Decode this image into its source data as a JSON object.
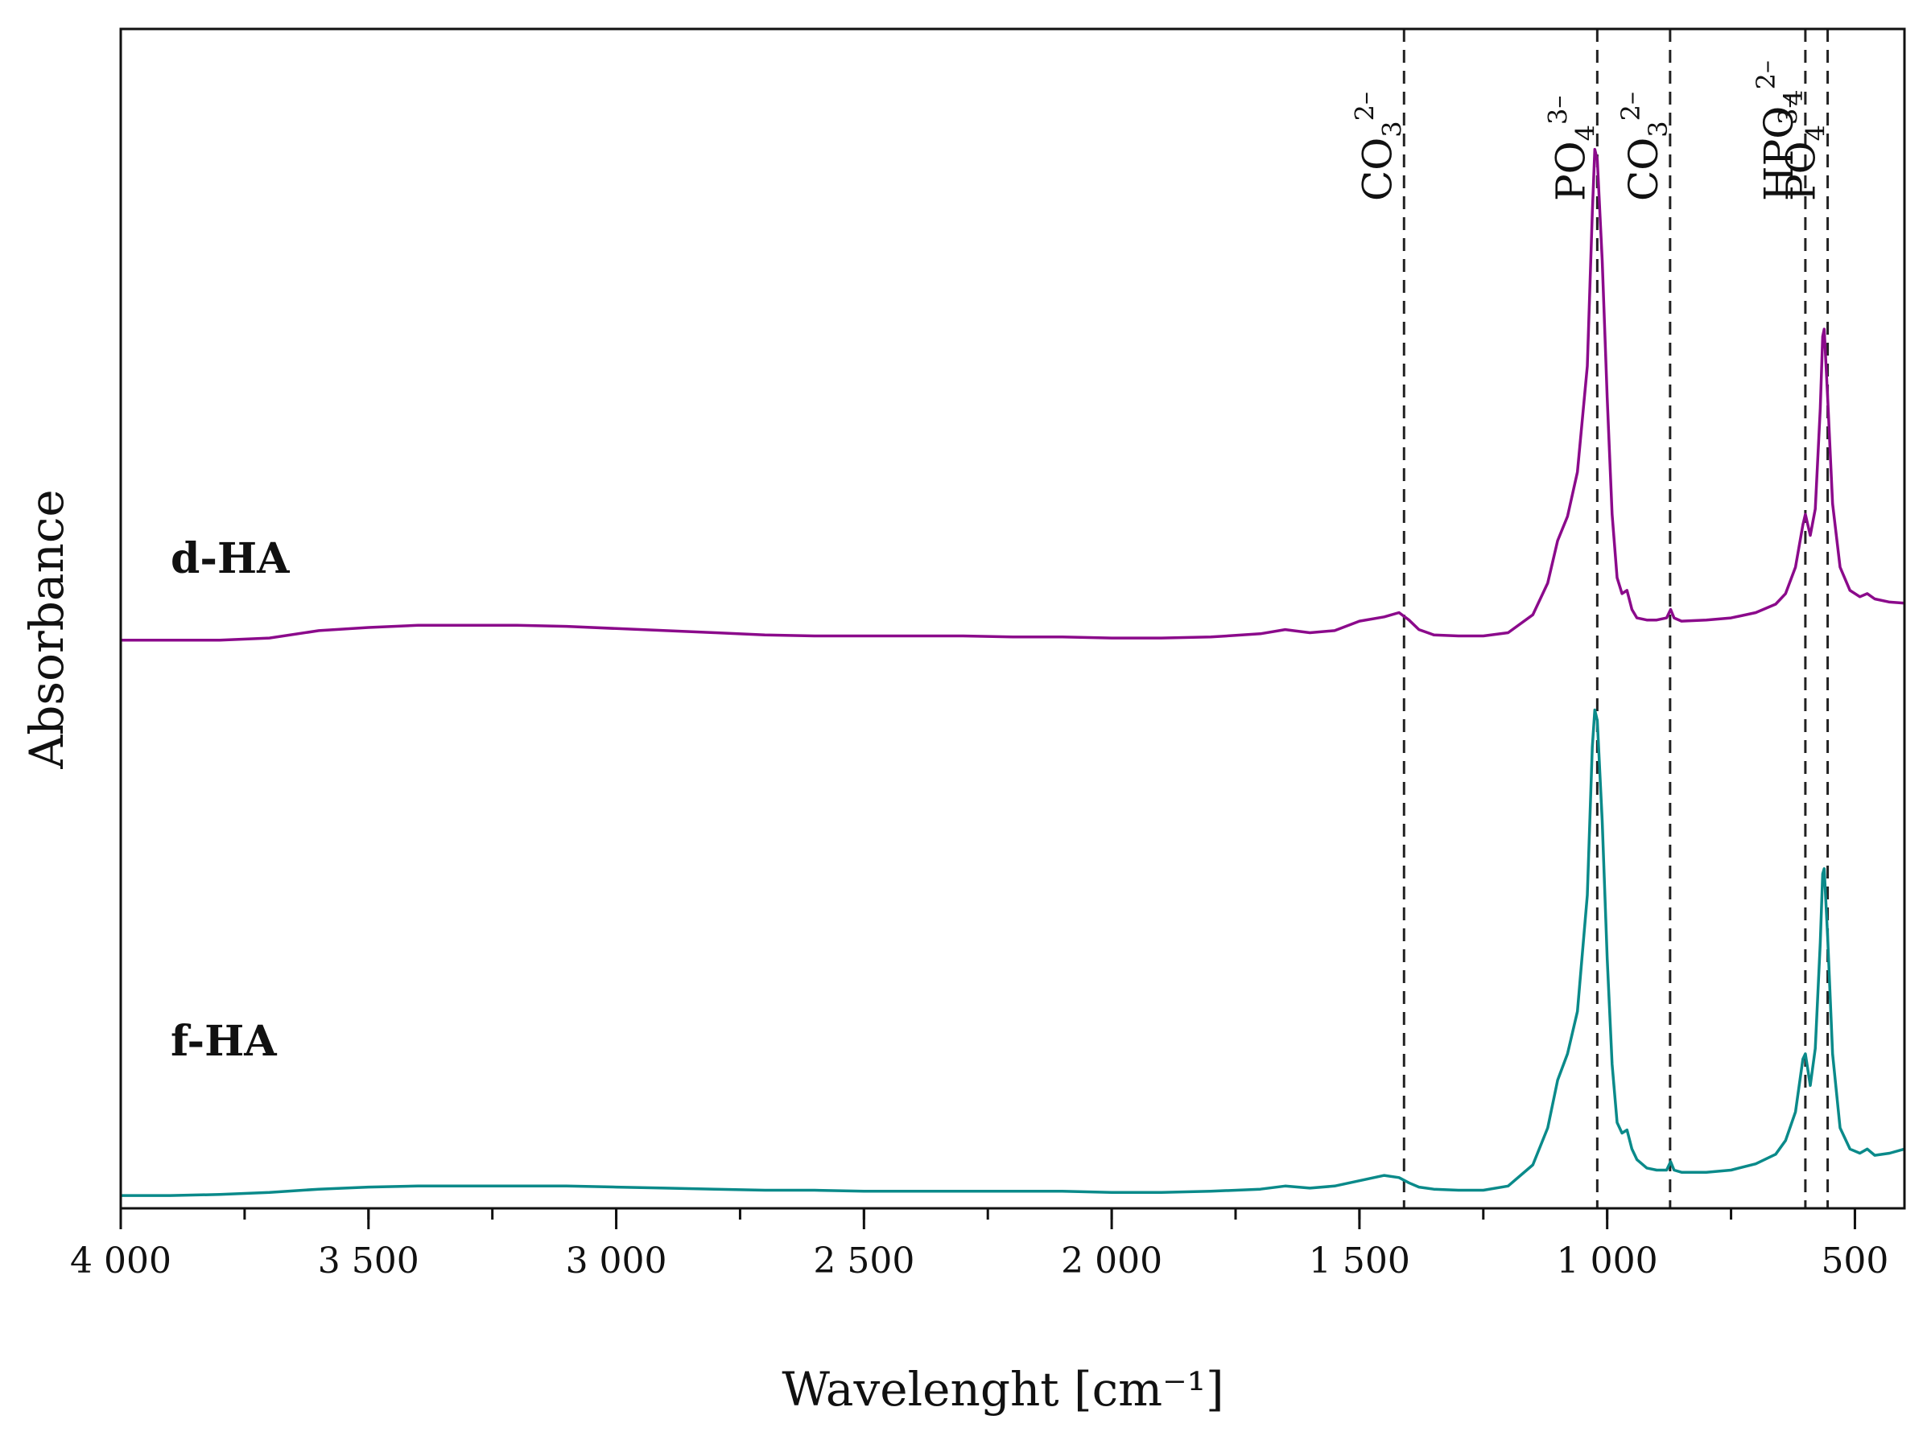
{
  "chart_data": {
    "type": "line",
    "xlabel": "Wavelenght [cm⁻¹]",
    "ylabel": "Absorbance",
    "xlim": [
      4000,
      400
    ],
    "x_reversed": true,
    "y_ticks_shown": false,
    "x_ticks": [
      4000,
      3500,
      3000,
      2500,
      2000,
      1500,
      1000,
      500
    ],
    "x_tick_labels": [
      "4 000",
      "3 500",
      "3 000",
      "2 500",
      "2 000",
      "1 500",
      "1 000",
      "500"
    ],
    "x_minor_step": 250,
    "grid": false,
    "ylim": [
      0,
      1.0
    ],
    "series": [
      {
        "name": "d-HA",
        "color": "#8b0a8b",
        "label_position": "left",
        "points": [
          [
            4000,
            0.531
          ],
          [
            3900,
            0.531
          ],
          [
            3800,
            0.531
          ],
          [
            3700,
            0.533
          ],
          [
            3600,
            0.54
          ],
          [
            3500,
            0.543
          ],
          [
            3400,
            0.545
          ],
          [
            3300,
            0.545
          ],
          [
            3200,
            0.545
          ],
          [
            3100,
            0.544
          ],
          [
            3000,
            0.542
          ],
          [
            2900,
            0.54
          ],
          [
            2800,
            0.538
          ],
          [
            2700,
            0.536
          ],
          [
            2600,
            0.535
          ],
          [
            2500,
            0.535
          ],
          [
            2400,
            0.535
          ],
          [
            2300,
            0.535
          ],
          [
            2200,
            0.534
          ],
          [
            2100,
            0.534
          ],
          [
            2000,
            0.533
          ],
          [
            1900,
            0.533
          ],
          [
            1800,
            0.534
          ],
          [
            1700,
            0.537
          ],
          [
            1650,
            0.541
          ],
          [
            1600,
            0.538
          ],
          [
            1550,
            0.54
          ],
          [
            1500,
            0.549
          ],
          [
            1450,
            0.553
          ],
          [
            1420,
            0.557
          ],
          [
            1400,
            0.55
          ],
          [
            1380,
            0.541
          ],
          [
            1350,
            0.536
          ],
          [
            1300,
            0.535
          ],
          [
            1250,
            0.535
          ],
          [
            1200,
            0.538
          ],
          [
            1150,
            0.555
          ],
          [
            1120,
            0.585
          ],
          [
            1100,
            0.625
          ],
          [
            1080,
            0.648
          ],
          [
            1060,
            0.69
          ],
          [
            1040,
            0.79
          ],
          [
            1030,
            0.935
          ],
          [
            1025,
            0.995
          ],
          [
            1020,
            0.985
          ],
          [
            1010,
            0.89
          ],
          [
            1000,
            0.76
          ],
          [
            990,
            0.65
          ],
          [
            980,
            0.59
          ],
          [
            970,
            0.575
          ],
          [
            960,
            0.578
          ],
          [
            950,
            0.56
          ],
          [
            940,
            0.552
          ],
          [
            920,
            0.55
          ],
          [
            900,
            0.55
          ],
          [
            880,
            0.552
          ],
          [
            872,
            0.56
          ],
          [
            865,
            0.552
          ],
          [
            850,
            0.549
          ],
          [
            800,
            0.55
          ],
          [
            750,
            0.552
          ],
          [
            700,
            0.557
          ],
          [
            660,
            0.565
          ],
          [
            640,
            0.575
          ],
          [
            620,
            0.6
          ],
          [
            605,
            0.64
          ],
          [
            600,
            0.65
          ],
          [
            590,
            0.63
          ],
          [
            580,
            0.655
          ],
          [
            570,
            0.75
          ],
          [
            565,
            0.818
          ],
          [
            562,
            0.825
          ],
          [
            555,
            0.76
          ],
          [
            545,
            0.66
          ],
          [
            530,
            0.6
          ],
          [
            510,
            0.578
          ],
          [
            490,
            0.572
          ],
          [
            475,
            0.575
          ],
          [
            460,
            0.57
          ],
          [
            430,
            0.567
          ],
          [
            400,
            0.566
          ]
        ]
      },
      {
        "name": "f-HA",
        "color": "#0a8a8a",
        "label_position": "left",
        "points": [
          [
            4000,
            0.006
          ],
          [
            3900,
            0.006
          ],
          [
            3800,
            0.007
          ],
          [
            3700,
            0.009
          ],
          [
            3600,
            0.012
          ],
          [
            3500,
            0.014
          ],
          [
            3400,
            0.015
          ],
          [
            3300,
            0.015
          ],
          [
            3200,
            0.015
          ],
          [
            3100,
            0.015
          ],
          [
            3000,
            0.014
          ],
          [
            2900,
            0.013
          ],
          [
            2800,
            0.012
          ],
          [
            2700,
            0.011
          ],
          [
            2600,
            0.011
          ],
          [
            2500,
            0.01
          ],
          [
            2400,
            0.01
          ],
          [
            2300,
            0.01
          ],
          [
            2200,
            0.01
          ],
          [
            2100,
            0.01
          ],
          [
            2000,
            0.009
          ],
          [
            1900,
            0.009
          ],
          [
            1800,
            0.01
          ],
          [
            1700,
            0.012
          ],
          [
            1650,
            0.015
          ],
          [
            1600,
            0.013
          ],
          [
            1550,
            0.015
          ],
          [
            1500,
            0.02
          ],
          [
            1450,
            0.025
          ],
          [
            1420,
            0.023
          ],
          [
            1400,
            0.018
          ],
          [
            1380,
            0.014
          ],
          [
            1350,
            0.012
          ],
          [
            1300,
            0.011
          ],
          [
            1250,
            0.011
          ],
          [
            1200,
            0.015
          ],
          [
            1150,
            0.035
          ],
          [
            1120,
            0.07
          ],
          [
            1100,
            0.115
          ],
          [
            1080,
            0.14
          ],
          [
            1060,
            0.18
          ],
          [
            1040,
            0.29
          ],
          [
            1030,
            0.43
          ],
          [
            1025,
            0.465
          ],
          [
            1020,
            0.455
          ],
          [
            1010,
            0.36
          ],
          [
            1000,
            0.23
          ],
          [
            990,
            0.13
          ],
          [
            980,
            0.075
          ],
          [
            970,
            0.065
          ],
          [
            960,
            0.068
          ],
          [
            950,
            0.05
          ],
          [
            940,
            0.04
          ],
          [
            920,
            0.032
          ],
          [
            900,
            0.03
          ],
          [
            880,
            0.03
          ],
          [
            872,
            0.038
          ],
          [
            865,
            0.03
          ],
          [
            850,
            0.028
          ],
          [
            800,
            0.028
          ],
          [
            750,
            0.03
          ],
          [
            700,
            0.036
          ],
          [
            660,
            0.045
          ],
          [
            640,
            0.058
          ],
          [
            620,
            0.085
          ],
          [
            605,
            0.135
          ],
          [
            600,
            0.14
          ],
          [
            590,
            0.11
          ],
          [
            580,
            0.145
          ],
          [
            570,
            0.245
          ],
          [
            565,
            0.31
          ],
          [
            562,
            0.315
          ],
          [
            555,
            0.25
          ],
          [
            545,
            0.14
          ],
          [
            530,
            0.07
          ],
          [
            510,
            0.05
          ],
          [
            490,
            0.046
          ],
          [
            475,
            0.05
          ],
          [
            460,
            0.044
          ],
          [
            430,
            0.046
          ],
          [
            400,
            0.05
          ]
        ]
      }
    ],
    "annotations": [
      {
        "x": 1410,
        "base": "CO",
        "sub": "3",
        "sup": "2–"
      },
      {
        "x": 1020,
        "base": "PO",
        "sub": "4",
        "sup": "3–"
      },
      {
        "x": 873,
        "base": "CO",
        "sub": "3",
        "sup": "2–"
      },
      {
        "x": 600,
        "base": "HPO",
        "sub": "4",
        "sup": "2–"
      },
      {
        "x": 555,
        "base": "PO",
        "sub": "4",
        "sup": "3–"
      }
    ]
  }
}
